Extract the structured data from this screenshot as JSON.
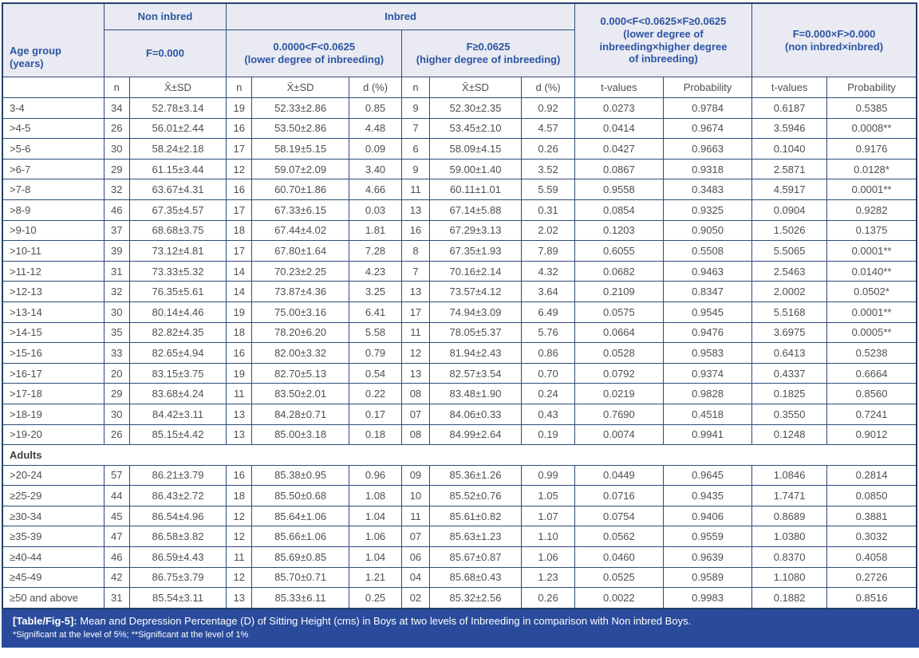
{
  "table": {
    "header": {
      "age_group": "Age group\n(years)",
      "non_inbred": "Non inbred",
      "inbred": "Inbred",
      "f_000": "F=0.000",
      "lower_group": "0.0000<F<0.0625\n(lower degree of inbreeding)",
      "higher_group": "F≥0.0625\n(higher degree of inbreeding)",
      "cross_levels": "0.000<F<0.0625×F≥0.0625\n(lower degree of\ninbreeding×higher degree\nof inbreeding)",
      "cross_noninbred": "F=0.000×F>0.000\n(non inbred×inbred)",
      "n": "n",
      "mean_sd": "X̄±SD",
      "d_pct": "d (%)",
      "t_values": "t-values",
      "probability": "Probability"
    },
    "section_label": "Adults",
    "child_rows": [
      [
        "3-4",
        "34",
        "52.78±3.14",
        "19",
        "52.33±2.86",
        "0.85",
        "9",
        "52.30±2.35",
        "0.92",
        "0.0273",
        "0.9784",
        "0.6187",
        "0.5385"
      ],
      [
        ">4-5",
        "26",
        "56.01±2.44",
        "16",
        "53.50±2.86",
        "4.48",
        "7",
        "53.45±2.10",
        "4.57",
        "0.0414",
        "0.9674",
        "3.5946",
        "0.0008**"
      ],
      [
        ">5-6",
        "30",
        "58.24±2.18",
        "17",
        "58.19±5.15",
        "0.09",
        "6",
        "58.09±4.15",
        "0.26",
        "0.0427",
        "0.9663",
        "0.1040",
        "0.9176"
      ],
      [
        ">6-7",
        "29",
        "61.15±3.44",
        "12",
        "59.07±2.09",
        "3.40",
        "9",
        "59.00±1.40",
        "3.52",
        "0.0867",
        "0.9318",
        "2.5871",
        "0.0128*"
      ],
      [
        ">7-8",
        "32",
        "63.67±4.31",
        "16",
        "60.70±1.86",
        "4.66",
        "11",
        "60.11±1.01",
        "5.59",
        "0.9558",
        "0.3483",
        "4.5917",
        "0.0001**"
      ],
      [
        ">8-9",
        "46",
        "67.35±4.57",
        "17",
        "67.33±6.15",
        "0.03",
        "13",
        "67.14±5.88",
        "0.31",
        "0.0854",
        "0.9325",
        "0.0904",
        "0.9282"
      ],
      [
        ">9-10",
        "37",
        "68.68±3.75",
        "18",
        "67.44±4.02",
        "1.81",
        "16",
        "67.29±3.13",
        "2.02",
        "0.1203",
        "0.9050",
        "1.5026",
        "0.1375"
      ],
      [
        ">10-11",
        "39",
        "73.12±4.81",
        "17",
        "67.80±1.64",
        "7.28",
        "8",
        "67.35±1.93",
        "7.89",
        "0.6055",
        "0.5508",
        "5.5065",
        "0.0001**"
      ],
      [
        ">11-12",
        "31",
        "73.33±5.32",
        "14",
        "70.23±2.25",
        "4.23",
        "7",
        "70.16±2.14",
        "4.32",
        "0.0682",
        "0.9463",
        "2.5463",
        "0.0140**"
      ],
      [
        ">12-13",
        "32",
        "76.35±5.61",
        "14",
        "73.87±4.36",
        "3.25",
        "13",
        "73.57±4.12",
        "3.64",
        "0.2109",
        "0.8347",
        "2.0002",
        "0.0502*"
      ],
      [
        ">13-14",
        "30",
        "80.14±4.46",
        "19",
        "75.00±3.16",
        "6.41",
        "17",
        "74.94±3.09",
        "6.49",
        "0.0575",
        "0.9545",
        "5.5168",
        "0.0001**"
      ],
      [
        ">14-15",
        "35",
        "82.82±4.35",
        "18",
        "78.20±6.20",
        "5.58",
        "11",
        "78.05±5.37",
        "5.76",
        "0.0664",
        "0.9476",
        "3.6975",
        "0.0005**"
      ],
      [
        ">15-16",
        "33",
        "82.65±4.94",
        "16",
        "82.00±3.32",
        "0.79",
        "12",
        "81.94±2.43",
        "0.86",
        "0.0528",
        "0.9583",
        "0.6413",
        "0.5238"
      ],
      [
        ">16-17",
        "20",
        "83.15±3.75",
        "19",
        "82.70±5.13",
        "0.54",
        "13",
        "82.57±3.54",
        "0.70",
        "0.0792",
        "0.9374",
        "0.4337",
        "0.6664"
      ],
      [
        ">17-18",
        "29",
        "83.68±4.24",
        "11",
        "83.50±2.01",
        "0.22",
        "08",
        "83.48±1.90",
        "0.24",
        "0.0219",
        "0.9828",
        "0.1825",
        "0.8560"
      ],
      [
        ">18-19",
        "30",
        "84.42±3.11",
        "13",
        "84.28±0.71",
        "0.17",
        "07",
        "84.06±0.33",
        "0.43",
        "0.7690",
        "0.4518",
        "0.3550",
        "0.7241"
      ],
      [
        ">19-20",
        "26",
        "85.15±4.42",
        "13",
        "85.00±3.18",
        "0.18",
        "08",
        "84.99±2.64",
        "0.19",
        "0.0074",
        "0.9941",
        "0.1248",
        "0.9012"
      ]
    ],
    "adult_rows": [
      [
        ">20-24",
        "57",
        "86.21±3.79",
        "16",
        "85.38±0.95",
        "0.96",
        "09",
        "85.36±1.26",
        "0.99",
        "0.0449",
        "0.9645",
        "1.0846",
        "0.2814"
      ],
      [
        "≥25-29",
        "44",
        "86.43±2.72",
        "18",
        "85.50±0.68",
        "1.08",
        "10",
        "85.52±0.76",
        "1.05",
        "0.0716",
        "0.9435",
        "1.7471",
        "0.0850"
      ],
      [
        "≥30-34",
        "45",
        "86.54±4.96",
        "12",
        "85.64±1.06",
        "1.04",
        "11",
        "85.61±0.82",
        "1.07",
        "0.0754",
        "0.9406",
        "0.8689",
        "0.3881"
      ],
      [
        "≥35-39",
        "47",
        "86.58±3.82",
        "12",
        "85.66±1.06",
        "1.06",
        "07",
        "85.63±1.23",
        "1.10",
        "0.0562",
        "0.9559",
        "1.0380",
        "0.3032"
      ],
      [
        "≥40-44",
        "46",
        "86.59±4.43",
        "11",
        "85.69±0.85",
        "1.04",
        "06",
        "85.67±0.87",
        "1.06",
        "0.0460",
        "0.9639",
        "0.8370",
        "0.4058"
      ],
      [
        "≥45-49",
        "42",
        "86.75±3.79",
        "12",
        "85.70±0.71",
        "1.21",
        "04",
        "85.68±0.43",
        "1.23",
        "0.0525",
        "0.9589",
        "1.1080",
        "0.2726"
      ],
      [
        "≥50 and above",
        "31",
        "85.54±3.11",
        "13",
        "85.33±6.11",
        "0.25",
        "02",
        "85.32±2.56",
        "0.26",
        "0.0022",
        "0.9983",
        "0.1882",
        "0.8516"
      ]
    ]
  },
  "caption": {
    "label": "[Table/Fig-5]:",
    "text": " Mean and Depression Percentage (D) of Sitting Height (cms) in Boys at two levels of Inbreeding in comparison with Non inbred Boys.",
    "footnote": "*Significant at the level of 5%; **Significant at the level of 1%"
  },
  "colors": {
    "header_bg": "#e9eaf2",
    "header_text": "#2d55a3",
    "grid_border": "#2e4b79",
    "body_text": "#4e4f51",
    "caption_bg": "#2a4b9b",
    "caption_text": "#ffffff"
  }
}
